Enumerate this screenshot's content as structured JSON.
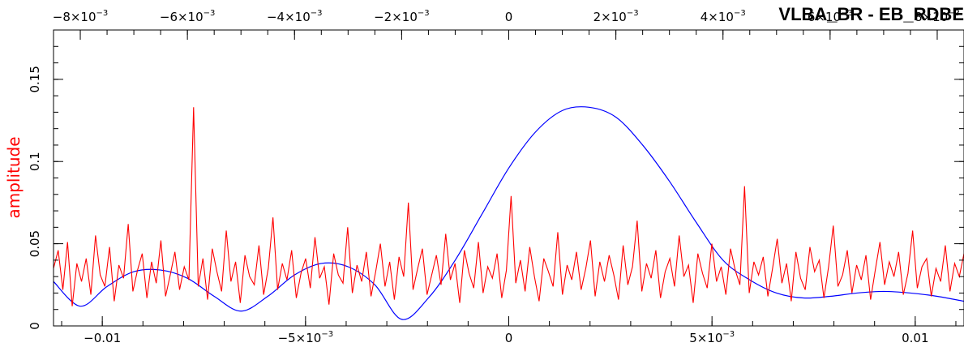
{
  "chart_data": {
    "type": "line",
    "title": "VLBA_BR - EB_RDBE",
    "ylabel": "amplitude",
    "xlabel": "",
    "ylim": [
      0,
      0.18
    ],
    "xlim_bottom": [
      -0.0112,
      0.0112
    ],
    "xlim_top": [
      -0.0085,
      0.0085
    ],
    "y_ticks": [
      {
        "value": 0,
        "label": "0"
      },
      {
        "value": 0.05,
        "label": "0.05"
      },
      {
        "value": 0.1,
        "label": "0.1"
      },
      {
        "value": 0.15,
        "label": "0.15"
      }
    ],
    "x_ticks_bottom": [
      {
        "value": -0.01,
        "label": "−0.01"
      },
      {
        "value": -0.005,
        "label": "−5×10",
        "exp": "−3"
      },
      {
        "value": 0,
        "label": "0"
      },
      {
        "value": 0.005,
        "label": "5×10",
        "exp": "−3"
      },
      {
        "value": 0.01,
        "label": "0.01"
      }
    ],
    "x_ticks_top": [
      {
        "value": -0.008,
        "label": "−8×10",
        "exp": "−3"
      },
      {
        "value": -0.006,
        "label": "−6×10",
        "exp": "−3"
      },
      {
        "value": -0.004,
        "label": "−4×10",
        "exp": "−3"
      },
      {
        "value": -0.002,
        "label": "−2×10",
        "exp": "−3"
      },
      {
        "value": 0,
        "label": "0"
      },
      {
        "value": 0.002,
        "label": "2×10",
        "exp": "−3"
      },
      {
        "value": 0.004,
        "label": "4×10",
        "exp": "−3"
      },
      {
        "value": 0.006,
        "label": "6×10",
        "exp": "−3"
      },
      {
        "value": 0.008,
        "label": "8×10",
        "exp": "−3"
      }
    ],
    "series": [
      {
        "color": "#0000ff",
        "axis": "top",
        "x": [
          -0.0085,
          -0.008,
          -0.0075,
          -0.007,
          -0.0065,
          -0.006,
          -0.0055,
          -0.005,
          -0.0045,
          -0.004,
          -0.0035,
          -0.003,
          -0.0025,
          -0.002,
          -0.0015,
          -0.001,
          -0.0005,
          0.0,
          0.0005,
          0.001,
          0.0015,
          0.002,
          0.0025,
          0.003,
          0.0035,
          0.004,
          0.0045,
          0.005,
          0.0055,
          0.006,
          0.0065,
          0.007,
          0.0075,
          0.008,
          0.0085
        ],
        "values": [
          0.027,
          0.012,
          0.024,
          0.033,
          0.034,
          0.029,
          0.018,
          0.009,
          0.018,
          0.031,
          0.038,
          0.036,
          0.025,
          0.004,
          0.017,
          0.04,
          0.068,
          0.096,
          0.118,
          0.131,
          0.133,
          0.127,
          0.11,
          0.088,
          0.063,
          0.04,
          0.028,
          0.02,
          0.017,
          0.018,
          0.02,
          0.021,
          0.02,
          0.018,
          0.015
        ]
      },
      {
        "color": "#ff0000",
        "axis": "bottom",
        "x_start": -0.0112,
        "x_end": 0.0112,
        "values": [
          0.035,
          0.046,
          0.022,
          0.051,
          0.012,
          0.038,
          0.027,
          0.041,
          0.019,
          0.055,
          0.031,
          0.024,
          0.048,
          0.015,
          0.037,
          0.029,
          0.062,
          0.021,
          0.034,
          0.044,
          0.017,
          0.039,
          0.026,
          0.052,
          0.018,
          0.031,
          0.045,
          0.022,
          0.036,
          0.028,
          0.133,
          0.024,
          0.041,
          0.016,
          0.047,
          0.033,
          0.021,
          0.058,
          0.027,
          0.039,
          0.014,
          0.043,
          0.03,
          0.025,
          0.049,
          0.019,
          0.035,
          0.066,
          0.022,
          0.038,
          0.028,
          0.046,
          0.017,
          0.032,
          0.041,
          0.023,
          0.054,
          0.029,
          0.036,
          0.013,
          0.044,
          0.031,
          0.026,
          0.06,
          0.02,
          0.037,
          0.027,
          0.045,
          0.018,
          0.033,
          0.05,
          0.024,
          0.039,
          0.016,
          0.042,
          0.03,
          0.075,
          0.022,
          0.035,
          0.047,
          0.019,
          0.031,
          0.043,
          0.025,
          0.056,
          0.028,
          0.038,
          0.014,
          0.046,
          0.032,
          0.023,
          0.051,
          0.02,
          0.036,
          0.029,
          0.044,
          0.017,
          0.034,
          0.079,
          0.026,
          0.04,
          0.021,
          0.048,
          0.03,
          0.015,
          0.041,
          0.033,
          0.024,
          0.057,
          0.019,
          0.037,
          0.028,
          0.045,
          0.022,
          0.035,
          0.052,
          0.018,
          0.039,
          0.027,
          0.043,
          0.031,
          0.016,
          0.049,
          0.025,
          0.036,
          0.064,
          0.021,
          0.038,
          0.029,
          0.046,
          0.017,
          0.033,
          0.041,
          0.024,
          0.055,
          0.03,
          0.037,
          0.014,
          0.044,
          0.032,
          0.023,
          0.05,
          0.027,
          0.036,
          0.019,
          0.047,
          0.034,
          0.025,
          0.085,
          0.02,
          0.039,
          0.031,
          0.042,
          0.018,
          0.035,
          0.053,
          0.026,
          0.038,
          0.015,
          0.045,
          0.029,
          0.022,
          0.048,
          0.033,
          0.04,
          0.017,
          0.036,
          0.061,
          0.024,
          0.031,
          0.046,
          0.02,
          0.037,
          0.028,
          0.043,
          0.016,
          0.034,
          0.051,
          0.025,
          0.039,
          0.03,
          0.045,
          0.019,
          0.032,
          0.058,
          0.023,
          0.036,
          0.041,
          0.018,
          0.035,
          0.027,
          0.049,
          0.021,
          0.038,
          0.03,
          0.044
        ]
      }
    ]
  }
}
